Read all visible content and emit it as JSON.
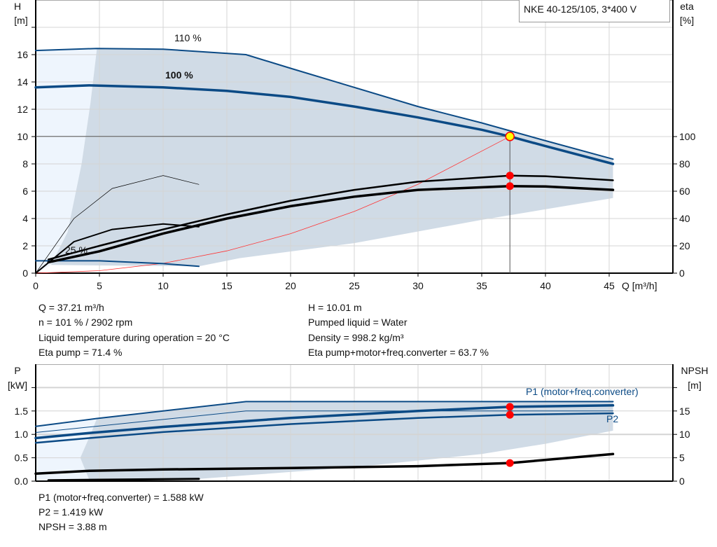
{
  "title": "NKE 40-125/105, 3*400 V",
  "chart_data": [
    {
      "type": "line",
      "name_box": "NKE 40-125/105, 3*400 V",
      "xlabel": "Q [m³/h]",
      "ylabel_left": [
        "H",
        "[m]"
      ],
      "ylabel_right": [
        "eta",
        "[%]"
      ],
      "xlim": [
        0,
        50
      ],
      "ylim_left": [
        0,
        18
      ],
      "ylim_right": [
        0,
        180
      ],
      "x_ticks": [
        0,
        5,
        10,
        15,
        20,
        25,
        30,
        35,
        40,
        45
      ],
      "y_ticks_left": [
        0,
        2,
        4,
        6,
        8,
        10,
        12,
        14,
        16
      ],
      "y_ticks_right": [
        0,
        20,
        40,
        60,
        80,
        100
      ],
      "grid": true,
      "curve_labels": [
        "110 %",
        "100 %",
        "25 %"
      ],
      "series": [
        {
          "name": "110 %",
          "axis": "H",
          "points": [
            [
              0,
              16.3
            ],
            [
              4.8,
              16.45
            ],
            [
              10,
              16.4
            ],
            [
              16.5,
              16.0
            ],
            [
              20,
              15.0
            ],
            [
              25,
              13.6
            ],
            [
              30,
              12.2
            ],
            [
              35,
              11.0
            ],
            [
              40,
              9.7
            ],
            [
              45.3,
              8.35
            ]
          ]
        },
        {
          "name": "100 %",
          "axis": "H",
          "points": [
            [
              0,
              13.6
            ],
            [
              4.2,
              13.75
            ],
            [
              10,
              13.6
            ],
            [
              15,
              13.35
            ],
            [
              20,
              12.9
            ],
            [
              25,
              12.2
            ],
            [
              30,
              11.4
            ],
            [
              35,
              10.5
            ],
            [
              37.21,
              10.01
            ],
            [
              40,
              9.3
            ],
            [
              45.3,
              8.0
            ]
          ]
        },
        {
          "name": "25 %",
          "axis": "H",
          "points": [
            [
              0,
              0.9
            ],
            [
              5,
              0.9
            ],
            [
              10,
              0.7
            ],
            [
              12.8,
              0.5
            ]
          ]
        },
        {
          "axis": "eta",
          "points": [
            [
              1,
              10
            ],
            [
              5,
              20
            ],
            [
              10,
              32
            ],
            [
              15,
              43
            ],
            [
              20,
              53
            ],
            [
              25,
              61
            ],
            [
              30,
              67
            ],
            [
              37.21,
              71.4
            ],
            [
              40,
              71
            ],
            [
              45.3,
              68
            ]
          ]
        },
        {
          "axis": "eta",
          "points": [
            [
              1,
              8
            ],
            [
              5,
              16
            ],
            [
              10,
              29
            ],
            [
              15,
              40
            ],
            [
              20,
              49
            ],
            [
              25,
              56
            ],
            [
              30,
              61
            ],
            [
              37.21,
              63.7
            ],
            [
              40,
              63.5
            ],
            [
              45.3,
              61
            ]
          ]
        },
        {
          "axis": "eta",
          "points": [
            [
              0,
              0
            ],
            [
              3,
              23
            ],
            [
              6,
              32
            ],
            [
              10,
              36
            ],
            [
              12.8,
              34
            ]
          ]
        },
        {
          "axis": "eta",
          "points": [
            [
              0,
              0
            ],
            [
              3,
              40
            ],
            [
              6,
              62
            ],
            [
              10,
              71.5
            ],
            [
              12.8,
              65
            ]
          ]
        }
      ],
      "system_curve": {
        "axis": "H",
        "points": [
          [
            0,
            0
          ],
          [
            5,
            0.18
          ],
          [
            10,
            0.72
          ],
          [
            15,
            1.63
          ],
          [
            20,
            2.89
          ],
          [
            25,
            4.52
          ],
          [
            30,
            6.51
          ],
          [
            37.21,
            10.01
          ]
        ]
      },
      "envelope": [
        [
          4.8,
          16.45
        ],
        [
          10,
          16.4
        ],
        [
          16.5,
          16.0
        ],
        [
          20,
          15.0
        ],
        [
          25,
          13.6
        ],
        [
          30,
          12.2
        ],
        [
          35,
          11.0
        ],
        [
          40,
          9.7
        ],
        [
          45.3,
          8.35
        ],
        [
          45.3,
          5.5
        ],
        [
          35,
          3.9
        ],
        [
          25,
          2.2
        ],
        [
          16,
          1.1
        ],
        [
          12.8,
          0.5
        ],
        [
          1.2,
          0.6
        ],
        [
          2.5,
          3
        ],
        [
          3.6,
          8
        ],
        [
          4.3,
          12.5
        ]
      ],
      "envelope_light": [
        [
          0,
          0
        ],
        [
          0,
          16.3
        ],
        [
          4.8,
          16.45
        ],
        [
          4.3,
          12.5
        ],
        [
          3.6,
          8
        ],
        [
          2.5,
          3
        ],
        [
          1.2,
          0.6
        ]
      ],
      "duty_point": {
        "Q": 37.21,
        "H": 10.01,
        "eta_pump": 71.4,
        "eta_total": 63.7
      }
    },
    {
      "type": "line",
      "xlim": [
        0,
        50
      ],
      "ylim_left": [
        0,
        2.5
      ],
      "ylim_right": [
        0,
        25
      ],
      "ylabel_left": [
        "P",
        "[kW]"
      ],
      "ylabel_right": [
        "NPSH",
        "[m]"
      ],
      "y_ticks_left": [
        "0.0",
        "0.5",
        "1.0",
        "1.5"
      ],
      "y_ticks_right": [
        0,
        5,
        10,
        15
      ],
      "grid": true,
      "series_labels": [
        "P1 (motor+freq.converter)",
        "P2"
      ],
      "series": [
        {
          "axis": "P",
          "points": [
            [
              0,
              1.17
            ],
            [
              4.8,
              1.34
            ],
            [
              16.5,
              1.7
            ],
            [
              45.3,
              1.7
            ]
          ]
        },
        {
          "axis": "P",
          "points": [
            [
              0,
              0.92
            ],
            [
              4.2,
              1.03
            ],
            [
              10,
              1.16
            ],
            [
              20,
              1.35
            ],
            [
              30,
              1.5
            ],
            [
              37.21,
              1.588
            ],
            [
              45.3,
              1.62
            ]
          ]
        },
        {
          "axis": "P",
          "points": [
            [
              0,
              0.82
            ],
            [
              4.2,
              0.92
            ],
            [
              10,
              1.05
            ],
            [
              20,
              1.22
            ],
            [
              30,
              1.35
            ],
            [
              37.21,
              1.419
            ],
            [
              45.3,
              1.45
            ]
          ]
        },
        {
          "axis": "P",
          "points": [
            [
              0,
              1.04
            ],
            [
              16.5,
              1.5
            ],
            [
              45.3,
              1.5
            ]
          ]
        },
        {
          "axis": "NPSH",
          "points": [
            [
              0,
              1.6
            ],
            [
              4.2,
              2.2
            ],
            [
              10,
              2.5
            ],
            [
              20,
              2.8
            ],
            [
              30,
              3.2
            ],
            [
              37.21,
              3.88
            ],
            [
              45.3,
              5.8
            ]
          ]
        },
        {
          "axis": "P",
          "points": [
            [
              1,
              0.02
            ],
            [
              12.8,
              0.05
            ]
          ]
        }
      ],
      "envelope": [
        [
          4.8,
          1.34
        ],
        [
          16.5,
          1.7
        ],
        [
          45.3,
          1.7
        ],
        [
          45.3,
          1.08
        ],
        [
          40,
          0.8
        ],
        [
          35,
          0.58
        ],
        [
          25,
          0.3
        ],
        [
          12.8,
          0.05
        ],
        [
          4.2,
          0.03
        ],
        [
          3.5,
          0.5
        ],
        [
          4.3,
          1.0
        ]
      ],
      "envelope_light": [
        [
          0,
          0.02
        ],
        [
          0,
          1.17
        ],
        [
          4.8,
          1.34
        ],
        [
          4.3,
          1.0
        ],
        [
          3.5,
          0.5
        ],
        [
          4.2,
          0.03
        ]
      ],
      "duty_points": {
        "P1": 1.588,
        "P2": 1.419,
        "NPSH": 3.88
      }
    }
  ],
  "results_top": {
    "left": [
      "Q = 37.21 m³/h",
      "n = 101 % / 2902 rpm",
      "Liquid temperature during operation = 20 °C",
      "Eta pump = 71.4 %"
    ],
    "right": [
      "H = 10.01 m",
      "Pumped liquid = Water",
      "Density = 998.2 kg/m³",
      "Eta pump+motor+freq.converter = 63.7 %"
    ]
  },
  "results_bottom": [
    "P1 (motor+freq.converter) = 1.588 kW",
    "P2 = 1.419 kW",
    "NPSH = 3.88 m"
  ],
  "colors": {
    "curve": "#0b4a85",
    "envelope": "#d0dbe6",
    "envelope_light": "#eef5fd",
    "eta": "#000000",
    "system": "#ff3333",
    "duty": "#ff0000",
    "duty_fill": "#ffff00"
  }
}
